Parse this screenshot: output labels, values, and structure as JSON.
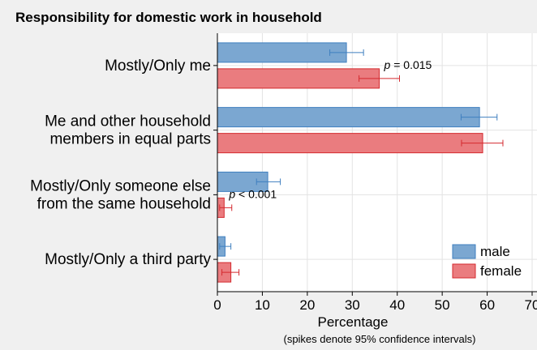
{
  "chart_data": {
    "type": "bar",
    "orientation": "horizontal",
    "title": "Responsibility for domestic work in household",
    "xlabel": "Percentage",
    "note": "(spikes denote 95% confidence intervals)",
    "xlim": [
      0,
      70
    ],
    "xticks": [
      0,
      10,
      20,
      30,
      40,
      50,
      60,
      70
    ],
    "grid": true,
    "legend_position": "bottom-right",
    "categories": [
      [
        "Mostly/Only me"
      ],
      [
        "Me and other household",
        "members in equal parts"
      ],
      [
        "Mostly/Only someone else",
        "from the same household"
      ],
      [
        "Mostly/Only a third party"
      ]
    ],
    "series": [
      {
        "name": "male",
        "color": "#7ba7d1",
        "edge": "#3f7fbf",
        "values": [
          28.7,
          58.3,
          11.2,
          1.7
        ],
        "ci": [
          [
            25.0,
            32.5
          ],
          [
            54.2,
            62.2
          ],
          [
            8.7,
            14.0
          ],
          [
            0.5,
            3.0
          ]
        ]
      },
      {
        "name": "female",
        "color": "#ea7c7f",
        "edge": "#d42a2f",
        "values": [
          36.0,
          59.0,
          1.5,
          3.0
        ],
        "ci": [
          [
            31.5,
            40.5
          ],
          [
            54.3,
            63.5
          ],
          [
            0.5,
            3.2
          ],
          [
            1.0,
            4.8
          ]
        ]
      }
    ],
    "annotations": [
      {
        "category_index": 0,
        "prefix": "p",
        "text": " = 0.015"
      },
      {
        "category_index": 2,
        "prefix": "p",
        "text": " < 0.001"
      }
    ]
  }
}
